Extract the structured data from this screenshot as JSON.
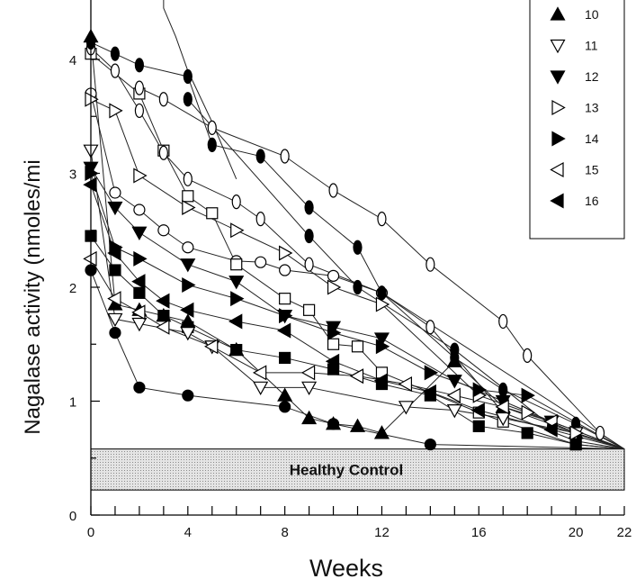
{
  "chart_data": {
    "type": "line",
    "xlabel": "Weeks",
    "ylabel": "Nagalase activity (nmoles/mi",
    "xlim": [
      0,
      22
    ],
    "ylim": [
      0,
      4.5
    ],
    "x_ticks": [
      "0",
      "4",
      "8",
      "12",
      "16",
      "20",
      "22"
    ],
    "y_ticks": [
      "0",
      "1",
      "2",
      "3",
      "4"
    ],
    "grid": false,
    "legend_position": "top-right, partially cropped",
    "reference_band": {
      "label": "Healthy   Control",
      "y_range": [
        0.22,
        0.58
      ]
    },
    "legend": [
      {
        "name": "10",
        "marker": "triangle-up-filled"
      },
      {
        "name": "11",
        "marker": "triangle-down-open"
      },
      {
        "name": "12",
        "marker": "triangle-down-filled"
      },
      {
        "name": "13",
        "marker": "triangle-right-open"
      },
      {
        "name": "14",
        "marker": "triangle-right-filled"
      },
      {
        "name": "15",
        "marker": "triangle-left-open"
      },
      {
        "name": "16",
        "marker": "triangle-left-filled"
      }
    ],
    "series": [
      {
        "marker": "circle-filled",
        "x": [
          0,
          1,
          2,
          4,
          8,
          10,
          14
        ],
        "y": [
          2.15,
          1.6,
          1.12,
          1.05,
          0.95,
          0.8,
          0.62
        ]
      },
      {
        "marker": "circle-open",
        "x": [
          0,
          1,
          2,
          3,
          4,
          6,
          7,
          8,
          10,
          12
        ],
        "y": [
          3.7,
          2.83,
          2.68,
          2.5,
          2.35,
          2.23,
          2.22,
          2.15,
          2.1,
          1.95
        ]
      },
      {
        "marker": "square-open",
        "x": [
          0,
          2,
          3,
          4,
          5,
          6,
          8,
          9,
          10,
          11,
          12,
          16,
          17,
          20
        ],
        "y": [
          4.05,
          3.7,
          3.2,
          2.8,
          2.65,
          2.2,
          1.9,
          1.8,
          1.5,
          1.48,
          1.25,
          0.9,
          0.82,
          0.62
        ]
      },
      {
        "marker": "ellipse-open",
        "x": [
          0,
          1,
          2,
          3,
          4,
          6,
          7,
          9,
          12,
          14,
          17,
          20
        ],
        "y": [
          4.1,
          3.9,
          3.55,
          3.18,
          2.95,
          2.75,
          2.6,
          2.2,
          1.95,
          1.65,
          0.9,
          0.65
        ]
      },
      {
        "marker": "ellipse-open",
        "x": [
          2,
          3,
          5,
          8,
          10,
          12,
          14,
          17,
          18,
          21
        ],
        "y": [
          3.75,
          3.65,
          3.4,
          3.15,
          2.85,
          2.6,
          2.2,
          1.7,
          1.4,
          0.72
        ]
      },
      {
        "marker": "ellipse-filled",
        "x": [
          0,
          1,
          2,
          4,
          5,
          7,
          9,
          11,
          12,
          15,
          17,
          20
        ],
        "y": [
          4.15,
          4.05,
          3.95,
          3.85,
          3.25,
          3.15,
          2.7,
          2.35,
          1.95,
          1.38,
          1.1,
          0.8
        ]
      },
      {
        "marker": "ellipse-filled",
        "x": [
          4,
          9,
          11,
          15,
          19
        ],
        "y": [
          3.65,
          2.45,
          2.0,
          1.45,
          0.78
        ]
      },
      {
        "marker": "square-filled",
        "x": [
          0,
          1,
          2,
          3,
          4,
          6,
          8,
          10,
          12,
          14,
          16,
          18,
          20
        ],
        "y": [
          2.45,
          2.15,
          1.95,
          1.75,
          1.65,
          1.45,
          1.38,
          1.28,
          1.15,
          1.05,
          0.78,
          0.72,
          0.62
        ]
      },
      {
        "name": "10",
        "marker": "triangle-up-filled",
        "x": [
          0,
          1,
          2,
          3,
          4,
          6,
          8,
          9,
          10,
          11,
          12,
          15,
          17,
          20
        ],
        "y": [
          4.2,
          1.85,
          1.8,
          1.75,
          1.7,
          1.45,
          1.05,
          0.85,
          0.8,
          0.78,
          0.72,
          1.35,
          0.95,
          0.72
        ]
      },
      {
        "name": "11",
        "marker": "triangle-down-open",
        "x": [
          0,
          1,
          2,
          4,
          5,
          7,
          9,
          13,
          15,
          17,
          20
        ],
        "y": [
          3.2,
          1.72,
          1.68,
          1.6,
          1.48,
          1.12,
          1.12,
          0.95,
          0.92,
          0.85,
          0.72
        ]
      },
      {
        "name": "12",
        "marker": "triangle-down-filled",
        "x": [
          0,
          1,
          2,
          4,
          6,
          8,
          10,
          12,
          15,
          17,
          19
        ],
        "y": [
          3.05,
          2.7,
          2.48,
          2.2,
          2.05,
          1.75,
          1.65,
          1.55,
          1.18,
          1.0,
          0.82
        ]
      },
      {
        "name": "13",
        "marker": "triangle-right-open",
        "x": [
          0,
          1,
          2,
          4,
          6,
          8,
          10,
          12,
          16,
          18,
          20
        ],
        "y": [
          3.65,
          3.55,
          2.98,
          2.7,
          2.5,
          2.3,
          2.0,
          1.85,
          1.05,
          0.9,
          0.72
        ]
      },
      {
        "name": "14",
        "marker": "triangle-right-filled",
        "x": [
          0,
          1,
          2,
          4,
          6,
          8,
          10,
          12,
          14,
          16,
          18
        ],
        "y": [
          3.0,
          2.35,
          2.25,
          2.02,
          1.9,
          1.75,
          1.6,
          1.48,
          1.25,
          1.1,
          1.05
        ]
      },
      {
        "name": "15",
        "marker": "triangle-left-open",
        "x": [
          0,
          1,
          2,
          3,
          5,
          7,
          9,
          11,
          13,
          15,
          17,
          19
        ],
        "y": [
          2.25,
          1.9,
          1.78,
          1.65,
          1.48,
          1.25,
          1.25,
          1.22,
          1.15,
          1.05,
          0.95,
          0.82
        ]
      },
      {
        "name": "16",
        "marker": "triangle-left-filled",
        "x": [
          0,
          1,
          2,
          3,
          4,
          6,
          8,
          10,
          12,
          14,
          16,
          19
        ],
        "y": [
          2.9,
          2.3,
          2.05,
          1.88,
          1.8,
          1.7,
          1.62,
          1.35,
          1.18,
          1.08,
          0.92,
          0.75
        ]
      },
      {
        "marker": "none",
        "x": [
          3,
          3.5,
          4,
          5,
          6
        ],
        "y": [
          4.45,
          4.2,
          3.9,
          3.45,
          2.95
        ]
      }
    ]
  }
}
